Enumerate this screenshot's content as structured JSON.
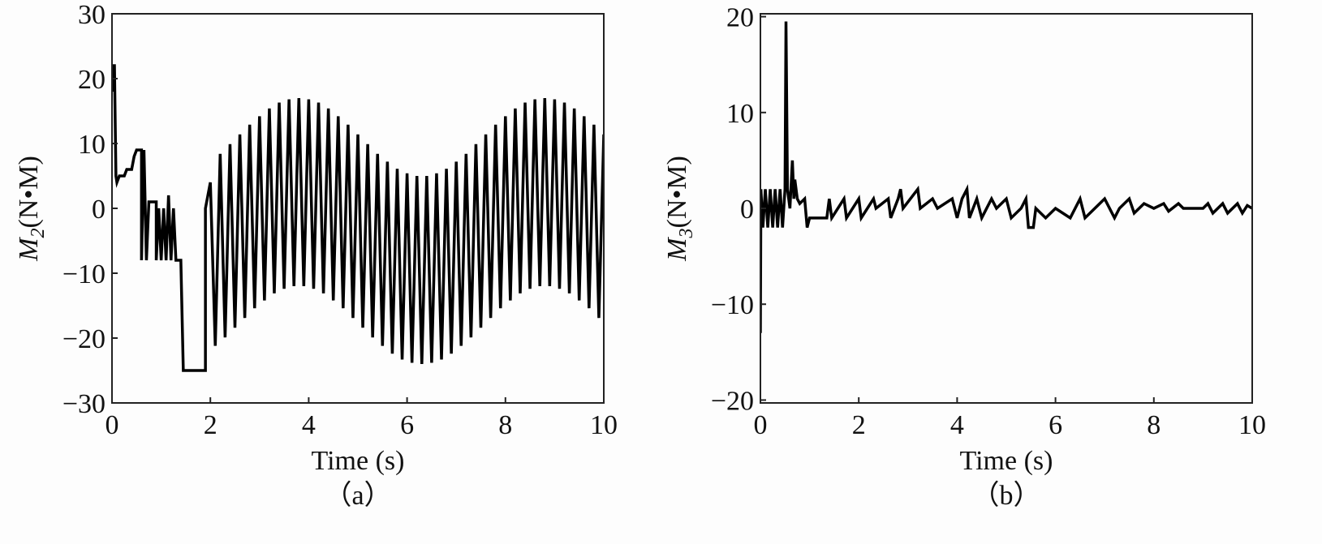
{
  "chart_data": [
    {
      "type": "line",
      "ylabel": {
        "symbol": "M",
        "subscript": "2",
        "unit": "(N•M)"
      },
      "xlabel": "Time (s)",
      "caption": "（a）",
      "color": "#000000",
      "xlim": [
        0,
        10
      ],
      "xticks": [
        0,
        2,
        4,
        6,
        8,
        10
      ],
      "ylim": [
        -30,
        30
      ],
      "yticks": [
        {
          "value": -30,
          "label": "−30"
        },
        {
          "value": -20,
          "label": "−20"
        },
        {
          "value": -10,
          "label": "−10"
        },
        0,
        10,
        20,
        30
      ],
      "x": [
        0,
        0.02,
        0.05,
        0.08,
        0.1,
        0.15,
        0.25,
        0.3,
        0.4,
        0.45,
        0.5,
        0.6,
        0.6,
        0.65,
        0.7,
        0.75,
        0.9,
        0.9,
        0.95,
        1.0,
        1.05,
        1.1,
        1.15,
        1.2,
        1.25,
        1.3,
        1.4,
        1.45,
        1.9,
        1.9,
        2.0,
        2.1,
        2.2,
        2.3,
        2.4,
        2.5,
        2.6,
        2.7,
        2.8,
        2.9,
        3.0,
        3.1,
        3.2,
        3.3,
        3.4,
        3.5,
        3.6,
        3.7,
        3.8,
        3.9,
        4.0,
        4.1,
        4.2,
        4.3,
        4.4,
        4.5,
        4.6,
        4.7,
        4.8,
        4.9,
        5.0,
        5.1,
        5.2,
        5.3,
        5.4,
        5.5,
        5.6,
        5.7,
        5.8,
        5.9,
        6.0,
        6.1,
        6.2,
        6.3,
        6.4,
        6.5,
        6.6,
        6.7,
        6.8,
        6.9,
        7.0,
        7.1,
        7.2,
        7.3,
        7.4,
        7.5,
        7.6,
        7.7,
        7.8,
        7.9,
        8.0,
        8.1,
        8.2,
        8.3,
        8.4,
        8.5,
        8.6,
        8.7,
        8.8,
        8.9,
        9.0,
        9.1,
        9.2,
        9.3,
        9.4,
        9.5,
        9.6,
        9.7,
        9.8,
        9.9,
        10.0
      ],
      "values": [
        18,
        22,
        22,
        5,
        4,
        5,
        5,
        6,
        6,
        8,
        9,
        9,
        -8,
        9,
        -8,
        1,
        1,
        -8,
        0,
        -8,
        0,
        -8,
        2,
        -8,
        0,
        -8,
        -8,
        -25,
        -25,
        0,
        4,
        -21.2,
        8.4,
        -19.9,
        9.9,
        -18.4,
        11.4,
        -16.9,
        12.9,
        -15.4,
        14.2,
        -14.2,
        15.4,
        -13.1,
        16.3,
        -12.4,
        16.8,
        -12.0,
        17,
        -12.0,
        16.8,
        -12.4,
        16.3,
        -13.1,
        15.4,
        -14.2,
        14.2,
        -15.4,
        12.9,
        -16.9,
        11.4,
        -18.4,
        9.9,
        -19.9,
        8.4,
        -21.2,
        7.2,
        -22.4,
        6.1,
        -23.3,
        5.4,
        -23.8,
        5.0,
        -24,
        5.0,
        -23.8,
        5.4,
        -23.3,
        6.1,
        -22.4,
        7.2,
        -21.2,
        8.4,
        -19.9,
        9.9,
        -18.4,
        11.4,
        -16.9,
        12.9,
        -15.4,
        14.2,
        -14.2,
        15.4,
        -13.1,
        16.3,
        -12.4,
        16.8,
        -12.0,
        17,
        -12.0,
        16.8,
        -12.4,
        16.3,
        -13.1,
        15.4,
        -14.2,
        14.2,
        -15.4,
        12.9,
        -16.9,
        11.4
      ]
    },
    {
      "type": "line",
      "ylabel": {
        "symbol": "M",
        "subscript": "3",
        "unit": "(N•M)"
      },
      "xlabel": "Time (s)",
      "caption": "（b）",
      "color": "#000000",
      "xlim": [
        0,
        10
      ],
      "xticks": [
        0,
        2,
        4,
        6,
        8,
        10
      ],
      "ylim": [
        -20.3,
        20.3
      ],
      "yticks": [
        {
          "value": -20,
          "label": "−20"
        },
        {
          "value": -10,
          "label": "−10"
        },
        0,
        10,
        20
      ],
      "x": [
        0,
        0.01,
        0.05,
        0.1,
        0.15,
        0.2,
        0.25,
        0.3,
        0.35,
        0.4,
        0.45,
        0.5,
        0.52,
        0.55,
        0.6,
        0.65,
        0.68,
        0.7,
        0.75,
        0.8,
        0.9,
        0.95,
        1.0,
        1.35,
        1.4,
        1.45,
        1.7,
        1.75,
        2.0,
        2.05,
        2.3,
        2.35,
        2.6,
        2.65,
        2.8,
        2.85,
        2.9,
        3.2,
        3.25,
        3.5,
        3.6,
        3.9,
        4.0,
        4.1,
        4.2,
        4.25,
        4.4,
        4.5,
        4.7,
        4.8,
        5.0,
        5.1,
        5.3,
        5.4,
        5.45,
        5.55,
        5.6,
        5.8,
        6.0,
        6.3,
        6.5,
        6.6,
        6.8,
        7.0,
        7.2,
        7.3,
        7.5,
        7.6,
        7.8,
        8.0,
        8.2,
        8.3,
        8.5,
        8.6,
        9.0,
        9.1,
        9.2,
        9.4,
        9.5,
        9.7,
        9.8,
        9.9,
        10
      ],
      "values": [
        -13,
        2,
        -2,
        2,
        -2,
        2,
        -2,
        2,
        -2,
        2,
        -2,
        2,
        19.5,
        2,
        0,
        5,
        1,
        3,
        1,
        0.5,
        1,
        -2,
        -1,
        -1,
        1,
        -1,
        1,
        -1,
        1,
        -1,
        1,
        0,
        1,
        -1,
        1,
        2,
        0,
        2,
        0,
        1,
        0,
        1,
        -1,
        1,
        2,
        -1,
        1,
        -1,
        1,
        0,
        1,
        -1,
        0,
        1,
        -2,
        -2,
        0,
        -1,
        0,
        -1,
        1,
        -1,
        0,
        1,
        -1,
        0,
        1,
        -0.5,
        0.5,
        0,
        0.5,
        -0.3,
        0.5,
        0,
        0,
        0.5,
        -0.5,
        0.5,
        -0.5,
        0.5,
        -0.5,
        0.3,
        0
      ]
    }
  ]
}
